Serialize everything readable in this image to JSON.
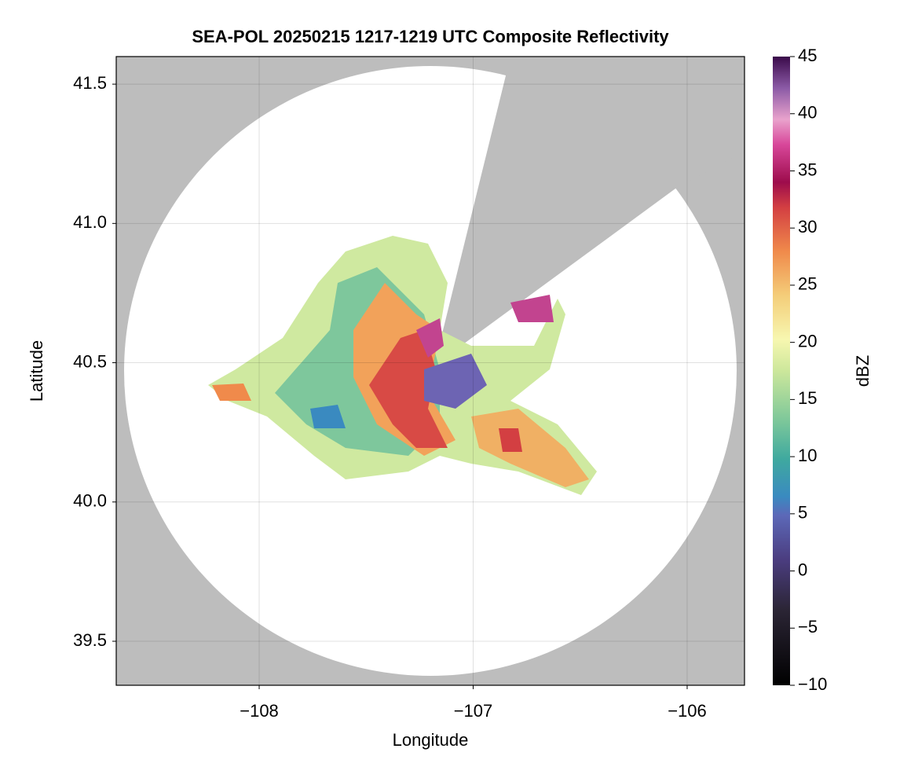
{
  "chart_data": {
    "type": "radar-map",
    "title": "SEA-POL 20250215 1217-1219 UTC Composite Reflectivity",
    "x_label": "Longitude",
    "y_label": "Latitude",
    "xlim": [
      -108.668,
      -105.732
    ],
    "ylim": [
      39.342,
      41.599
    ],
    "xticks": [
      {
        "value": -108,
        "label": "−108"
      },
      {
        "value": -107,
        "label": "−107"
      },
      {
        "value": -106,
        "label": "−106"
      }
    ],
    "yticks": [
      39.5,
      {
        "value": 40,
        "label": "40.0"
      },
      40.5,
      {
        "value": 41,
        "label": "41.0"
      },
      41.5
    ],
    "grid": true,
    "colorbar": {
      "label": "dBZ",
      "clim": [
        -10,
        45
      ],
      "ticks": [
        {
          "value": -10,
          "label": "−10"
        },
        {
          "value": -5,
          "label": "−5"
        },
        0,
        5,
        10,
        15,
        20,
        25,
        30,
        35,
        40,
        45
      ]
    }
  }
}
